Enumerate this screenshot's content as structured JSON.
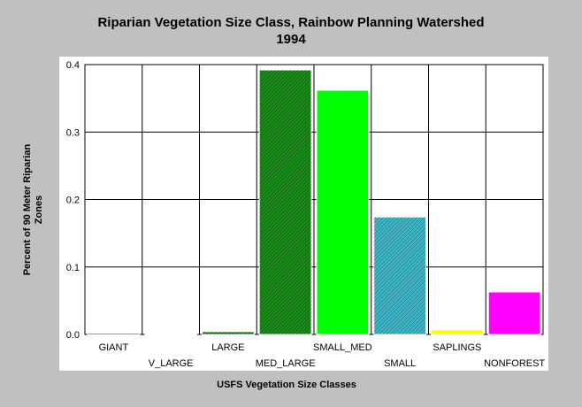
{
  "chart_data": {
    "type": "bar",
    "title": "Riparian Vegetation Size Class, Rainbow Planning Watershed",
    "subtitle": "1994",
    "xlabel": "USFS Vegetation Size Classes",
    "ylabel_line1": "Percent of 90 Meter Riparian",
    "ylabel_line2": "Zones",
    "ylim": [
      0,
      0.4
    ],
    "yticks": [
      "0.0",
      "0.1",
      "0.2",
      "0.3",
      "0.4"
    ],
    "grid": true,
    "categories": [
      "GIANT",
      "V_LARGE",
      "LARGE",
      "MED_LARGE",
      "SMALL_MED",
      "SMALL",
      "SAPLINGS",
      "NONFOREST"
    ],
    "values": [
      0.002,
      0.0,
      0.004,
      0.392,
      0.362,
      0.174,
      0.007,
      0.063
    ],
    "colors": [
      "#800080",
      "#606060",
      "#1a7a1a",
      "#1a8c1a",
      "#00ff00",
      "#40b8c8",
      "#ffff00",
      "#ff00ff"
    ],
    "hatched": [
      false,
      false,
      true,
      true,
      false,
      true,
      false,
      false
    ]
  }
}
